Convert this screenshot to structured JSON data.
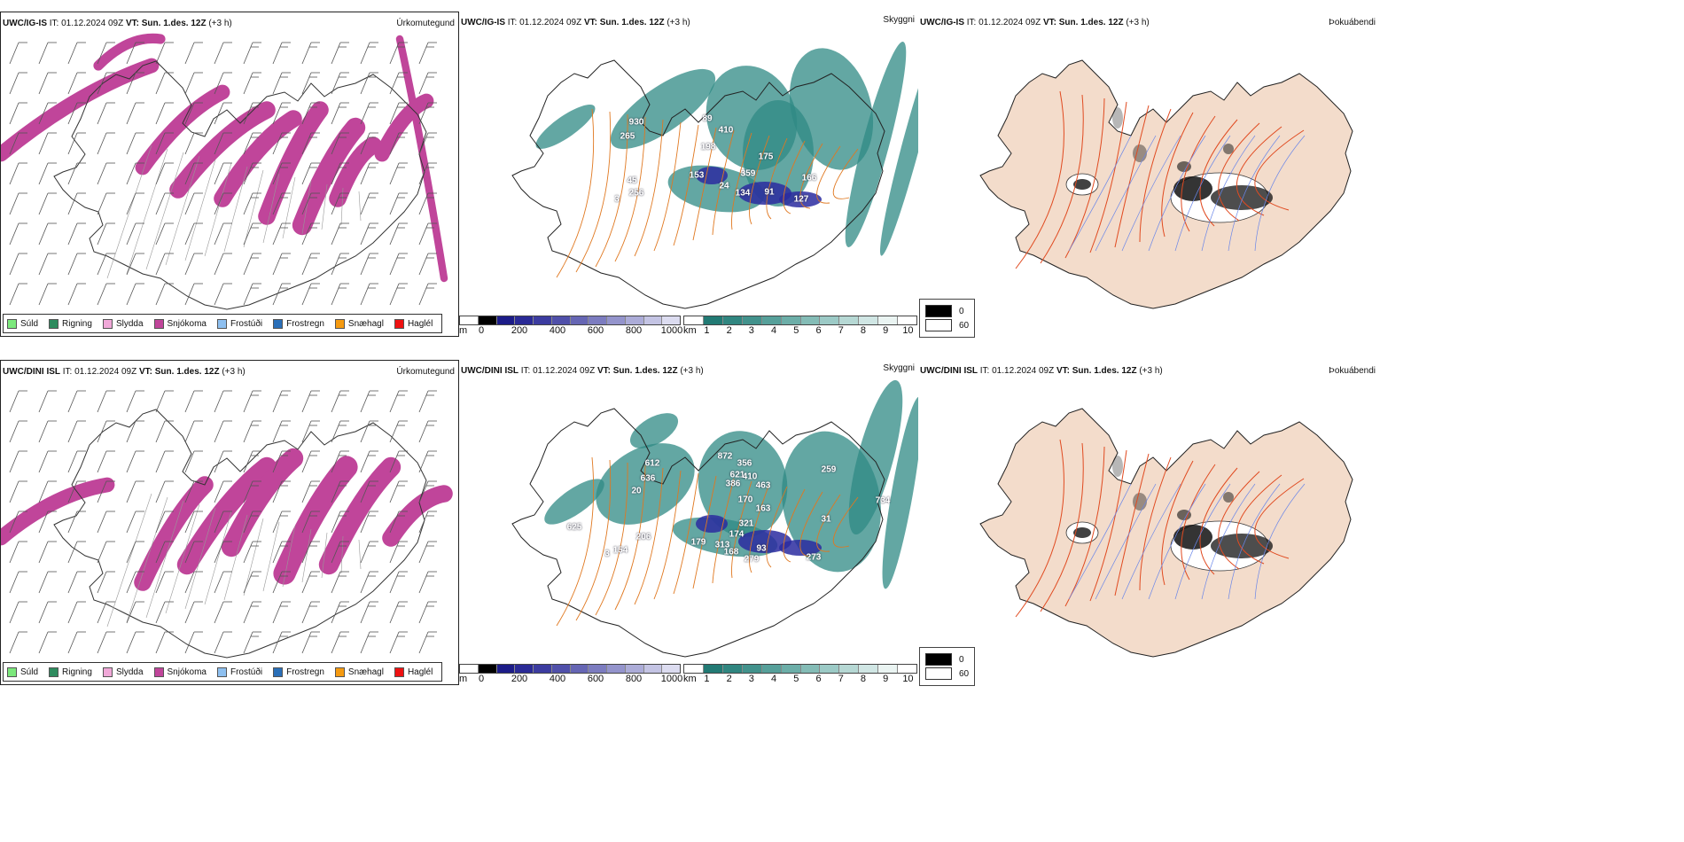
{
  "rows": [
    {
      "model": "UWC/IG-IS",
      "it_label": "IT:",
      "it_value": "01.12.2024 09Z",
      "vt_label": "VT:",
      "vt_value": "Sun. 1.des. 12Z",
      "lead": "(+3 h)",
      "panels": {
        "precip_type": {
          "title": "Úrkomutegund"
        },
        "visibility": {
          "title": "Skyggni",
          "labels": [
            {
              "text": "930"
            },
            {
              "text": "265"
            },
            {
              "text": "89"
            },
            {
              "text": "410"
            },
            {
              "text": "198"
            },
            {
              "text": "153"
            },
            {
              "text": "359"
            },
            {
              "text": "175"
            },
            {
              "text": "24"
            },
            {
              "text": "134"
            },
            {
              "text": "91"
            },
            {
              "text": "166"
            },
            {
              "text": "127"
            },
            {
              "text": "45"
            },
            {
              "text": "256"
            },
            {
              "text": "3"
            }
          ]
        },
        "fog": {
          "title": "Þokuábendi"
        }
      }
    },
    {
      "model": "UWC/DINI ISL",
      "it_label": "IT:",
      "it_value": "01.12.2024 09Z",
      "vt_label": "VT:",
      "vt_value": "Sun. 1.des. 12Z",
      "lead": "(+3 h)",
      "panels": {
        "precip_type": {
          "title": "Úrkomutegund"
        },
        "visibility": {
          "title": "Skyggni",
          "labels": [
            {
              "text": "872"
            },
            {
              "text": "356"
            },
            {
              "text": "612"
            },
            {
              "text": "636"
            },
            {
              "text": "621"
            },
            {
              "text": "386"
            },
            {
              "text": "410"
            },
            {
              "text": "20"
            },
            {
              "text": "170"
            },
            {
              "text": "463"
            },
            {
              "text": "259"
            },
            {
              "text": "625"
            },
            {
              "text": "206"
            },
            {
              "text": "174"
            },
            {
              "text": "179"
            },
            {
              "text": "163"
            },
            {
              "text": "321"
            },
            {
              "text": "313"
            },
            {
              "text": "734"
            },
            {
              "text": "31"
            },
            {
              "text": "168"
            },
            {
              "text": "93"
            },
            {
              "text": "279"
            },
            {
              "text": "273"
            },
            {
              "text": "154"
            },
            {
              "text": "3"
            }
          ]
        },
        "fog": {
          "title": "Þokuábendi"
        }
      }
    }
  ],
  "precip_legend": [
    {
      "label": "Súld",
      "color": "#7ce87c"
    },
    {
      "label": "Rigning",
      "color": "#2e8b5e"
    },
    {
      "label": "Slydda",
      "color": "#f0a8d8"
    },
    {
      "label": "Snjókoma",
      "color": "#c0459a"
    },
    {
      "label": "Frostúði",
      "color": "#8ec0f0"
    },
    {
      "label": "Frostregn",
      "color": "#2a6fb8"
    },
    {
      "label": "Snæhagl",
      "color": "#f59a10"
    },
    {
      "label": "Haglél",
      "color": "#ee1111"
    }
  ],
  "ceiling_bar": {
    "unit": "m",
    "ticks": [
      "0",
      "200",
      "400",
      "600",
      "800",
      "1000"
    ],
    "colors": [
      "#ffffff",
      "#000000",
      "#1c1c88",
      "#2a2a96",
      "#3c3ca0",
      "#5050aa",
      "#6666b4",
      "#7c7cc0",
      "#9494cc",
      "#acacd8",
      "#c4c4e4",
      "#dcdcf0"
    ]
  },
  "visibility_bar": {
    "unit": "km",
    "ticks": [
      "1",
      "2",
      "3",
      "4",
      "5",
      "6",
      "7",
      "8",
      "9",
      "10"
    ],
    "colors": [
      "#ffffff",
      "#227a74",
      "#308680",
      "#42928c",
      "#56a09a",
      "#6caea8",
      "#84bcb6",
      "#9ccac6",
      "#b6d8d4",
      "#d0e6e4",
      "#eaf4f2",
      "#ffffff"
    ]
  },
  "fog_legend": [
    {
      "label": "0",
      "color": "#000000"
    },
    {
      "label": "60",
      "color": "#ffffff"
    }
  ],
  "colors": {
    "snow": "#c0459a",
    "vis_teal": "#2f8a84",
    "ceiling_blue": "#2c2ca0",
    "road_orange": "#e07820",
    "road_red": "#e04a20",
    "land_fog": "#f3dccb",
    "river": "#6a86e8"
  }
}
